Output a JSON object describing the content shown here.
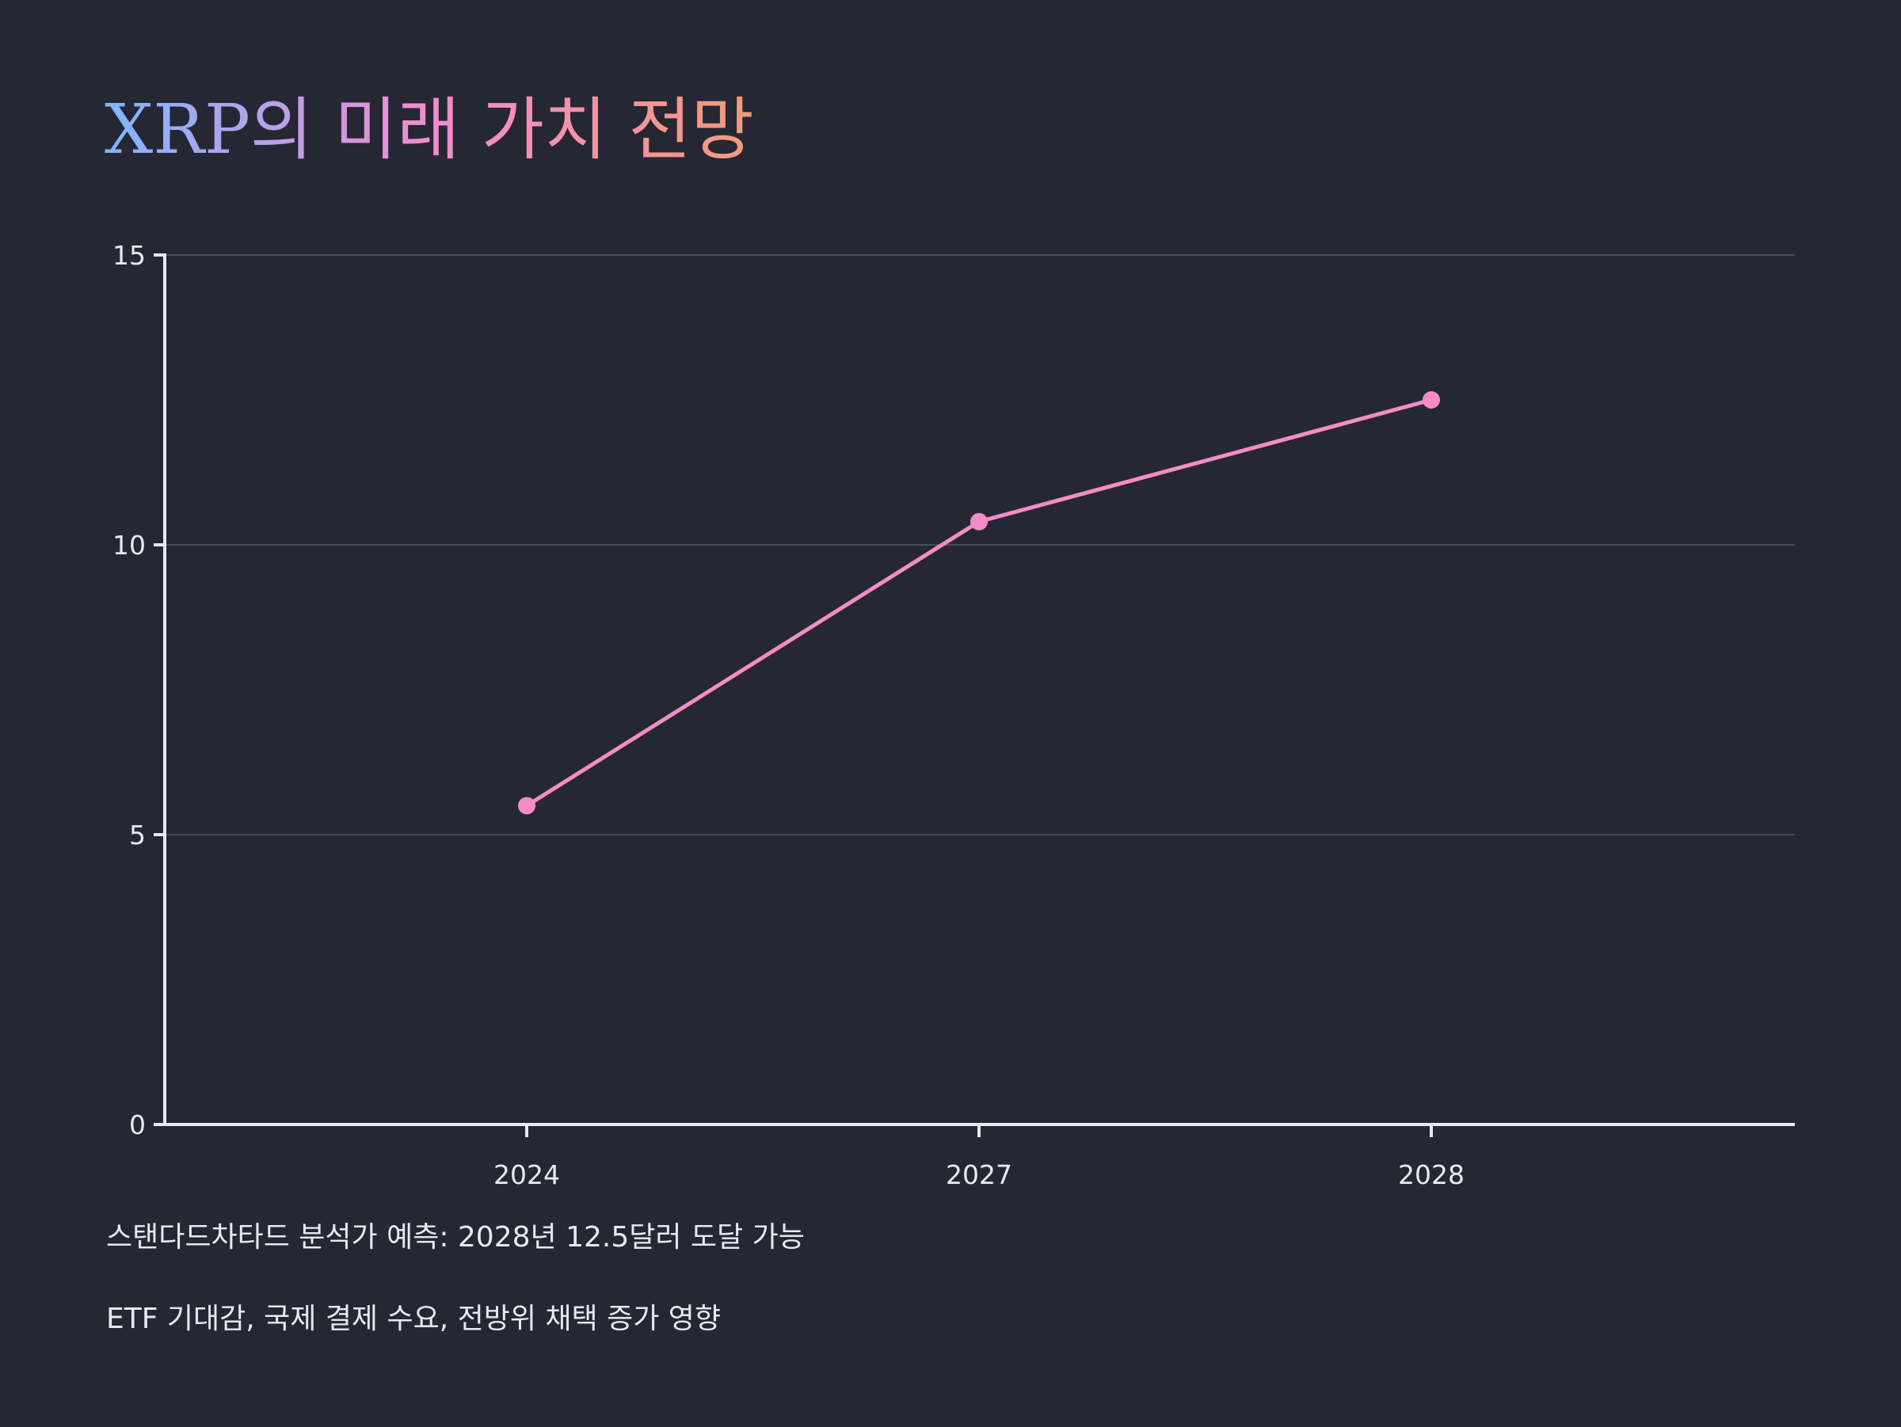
{
  "colors": {
    "background": "#252733",
    "axis": "#e6e9f0",
    "grid": "#4a4d5a",
    "series": "#f58cc8",
    "title_gradient": [
      "#7fb6ff",
      "#f28cd0",
      "#f39a78"
    ]
  },
  "chart_data": {
    "type": "line",
    "title": "XRP의 미래 가치 전망",
    "xlabel": "",
    "ylabel": "",
    "categories": [
      "2024",
      "2027",
      "2028"
    ],
    "series": [
      {
        "values": [
          5.5,
          10.4,
          12.5
        ]
      }
    ],
    "ylim": [
      0,
      15
    ],
    "yticks": [
      0,
      5,
      10,
      15
    ],
    "grid": true,
    "annotations": [
      "스탠다드차타드 분석가 예측: 2028년 12.5달러 도달 가능",
      "ETF 기대감, 국제 결제 수요, 전방위 채택 증가 영향"
    ]
  }
}
